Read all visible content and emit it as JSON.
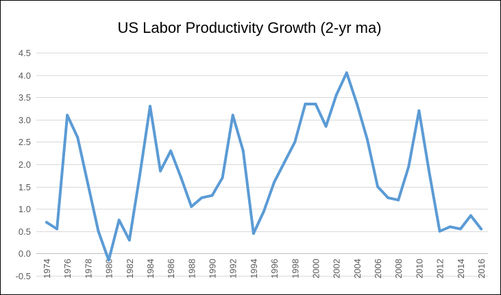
{
  "chart_data": {
    "type": "line",
    "title": "US Labor Productivity Growth (2-yr ma)",
    "xlabel": "",
    "ylabel": "",
    "ylim": [
      -0.5,
      4.5
    ],
    "yticks": [
      "4.5",
      "4.0",
      "3.5",
      "3.0",
      "2.5",
      "2.0",
      "1.5",
      "1.0",
      "0.5",
      "0.0",
      "-0.5"
    ],
    "ytick_values": [
      4.5,
      4.0,
      3.5,
      3.0,
      2.5,
      2.0,
      1.5,
      1.0,
      0.5,
      0.0,
      -0.5
    ],
    "xticks": [
      "1974",
      "1976",
      "1978",
      "1980",
      "1982",
      "1984",
      "1986",
      "1988",
      "1990",
      "1992",
      "1994",
      "1996",
      "1998",
      "2000",
      "2002",
      "2004",
      "2006",
      "2008",
      "2010",
      "2012",
      "2014",
      "2016"
    ],
    "grid": "horizontal",
    "legend": "none",
    "line_color": "#5b9bd5",
    "x": [
      1974,
      1975,
      1976,
      1977,
      1978,
      1979,
      1980,
      1981,
      1982,
      1983,
      1984,
      1985,
      1986,
      1987,
      1988,
      1989,
      1990,
      1991,
      1992,
      1993,
      1994,
      1995,
      1996,
      1997,
      1998,
      1999,
      2000,
      2001,
      2002,
      2003,
      2004,
      2005,
      2006,
      2007,
      2008,
      2009,
      2010,
      2011,
      2012,
      2013,
      2014,
      2015,
      2016
    ],
    "series": [
      {
        "values": [
          0.7,
          0.55,
          3.1,
          2.6,
          1.55,
          0.5,
          -0.15,
          0.75,
          0.3,
          1.75,
          3.3,
          1.85,
          2.3,
          1.7,
          1.05,
          1.25,
          1.3,
          1.7,
          3.1,
          2.3,
          0.45,
          0.95,
          1.6,
          2.05,
          2.5,
          3.35,
          3.35,
          2.85,
          3.55,
          4.05,
          3.35,
          2.55,
          1.5,
          1.25,
          1.2,
          1.95,
          3.2,
          1.8,
          0.5,
          0.6,
          0.55,
          0.85,
          0.55
        ]
      }
    ]
  }
}
